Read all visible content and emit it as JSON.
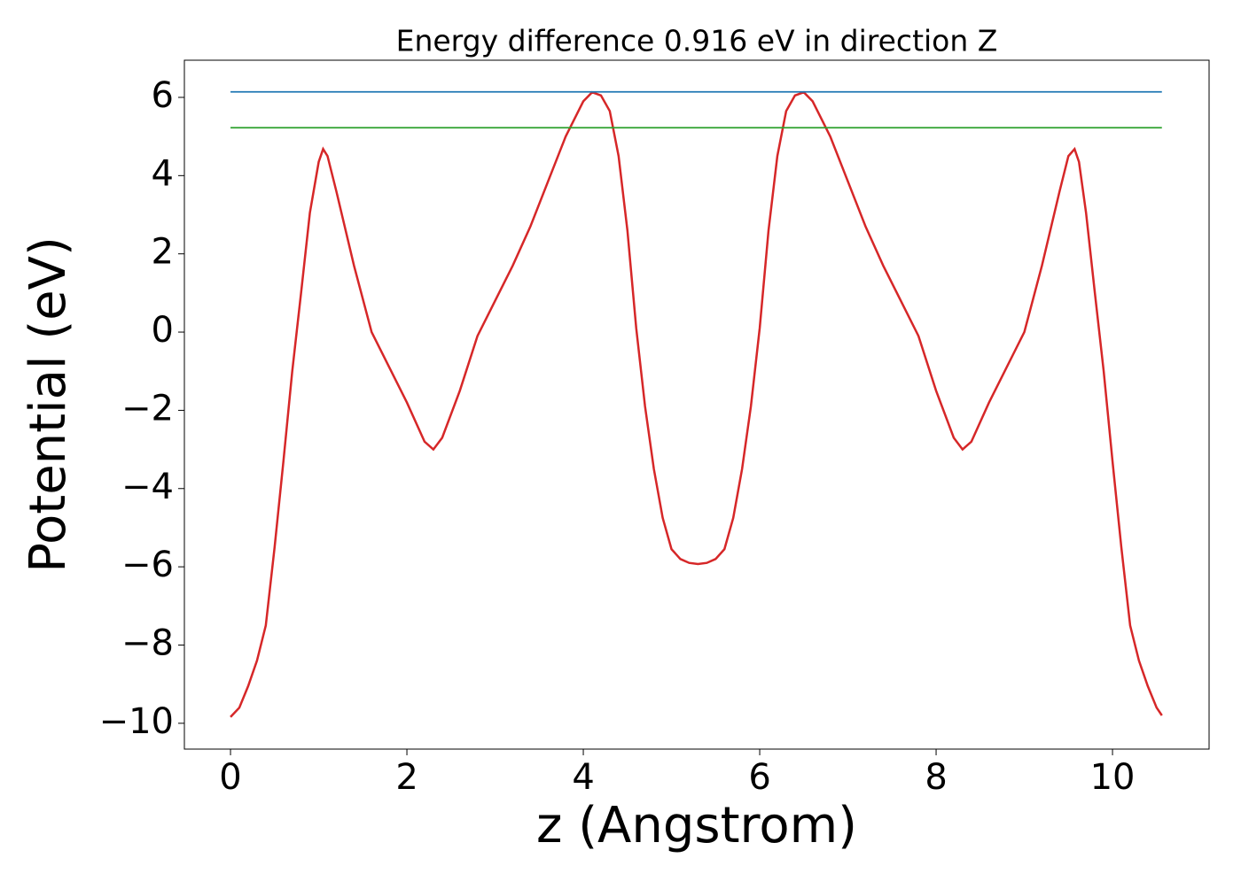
{
  "chart_data": {
    "type": "line",
    "title": "Energy difference 0.916 eV in direction Z",
    "xlabel": "z (Angstrom)",
    "ylabel": "Potential (eV)",
    "xlim": [
      -0.523,
      11.095
    ],
    "ylim": [
      -10.66,
      6.95
    ],
    "xticks": [
      0,
      2,
      4,
      6,
      8,
      10
    ],
    "yticks": [
      {
        "value": -10,
        "label": "−10"
      },
      {
        "value": -8,
        "label": "−8"
      },
      {
        "value": -6,
        "label": "−6"
      },
      {
        "value": -4,
        "label": "−4"
      },
      {
        "value": -2,
        "label": "−2"
      },
      0,
      2,
      4,
      6
    ],
    "series": [
      {
        "color": "#d62728",
        "x": [
          0,
          0.1,
          0.2,
          0.3,
          0.4,
          0.5,
          0.6,
          0.7,
          0.8,
          0.9,
          1.0,
          1.05,
          1.1,
          1.2,
          1.4,
          1.6,
          1.8,
          2.0,
          2.2,
          2.3,
          2.4,
          2.6,
          2.8,
          3.0,
          3.2,
          3.4,
          3.6,
          3.8,
          4.0,
          4.1,
          4.2,
          4.3,
          4.4,
          4.5,
          4.6,
          4.7,
          4.8,
          4.9,
          5.0,
          5.1,
          5.2,
          5.3,
          5.4,
          5.5,
          5.6,
          5.7,
          5.8,
          5.9,
          6.0,
          6.1,
          6.2,
          6.3,
          6.4,
          6.5,
          6.6,
          6.8,
          7.0,
          7.2,
          7.4,
          7.6,
          7.8,
          8.0,
          8.2,
          8.3,
          8.4,
          8.6,
          8.8,
          9.0,
          9.2,
          9.4,
          9.5,
          9.57,
          9.62,
          9.7,
          9.8,
          9.9,
          10.0,
          10.1,
          10.2,
          10.3,
          10.4,
          10.5,
          10.56
        ],
        "values": [
          -9.84,
          -9.6,
          -9.05,
          -8.4,
          -7.5,
          -5.5,
          -3.3,
          -1.0,
          1.0,
          3.05,
          4.35,
          4.68,
          4.5,
          3.6,
          1.7,
          0,
          -0.9,
          -1.8,
          -2.8,
          -3.0,
          -2.7,
          -1.5,
          -0.1,
          0.8,
          1.7,
          2.7,
          3.85,
          5.0,
          5.9,
          6.13,
          6.05,
          5.65,
          4.5,
          2.6,
          0.1,
          -1.9,
          -3.5,
          -4.75,
          -5.55,
          -5.8,
          -5.9,
          -5.93,
          -5.9,
          -5.8,
          -5.55,
          -4.75,
          -3.5,
          -1.9,
          0.1,
          2.6,
          4.5,
          5.65,
          6.05,
          6.13,
          5.9,
          5.0,
          3.85,
          2.7,
          1.7,
          0.8,
          -0.1,
          -1.5,
          -2.7,
          -3.0,
          -2.8,
          -1.8,
          -0.9,
          0,
          1.7,
          3.6,
          4.5,
          4.68,
          4.35,
          3.05,
          1.0,
          -1.0,
          -3.3,
          -5.5,
          -7.5,
          -8.4,
          -9.05,
          -9.6,
          -9.8
        ]
      },
      {
        "color": "#1f77b4",
        "x": [
          0,
          10.56
        ],
        "values": [
          6.14,
          6.14
        ]
      },
      {
        "color": "#2ca02c",
        "x": [
          0,
          10.56
        ],
        "values": [
          5.224,
          5.224
        ]
      }
    ]
  }
}
